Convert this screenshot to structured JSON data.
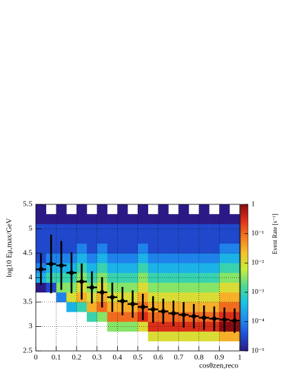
{
  "chart_data": {
    "type": "heatmap",
    "x_label": "cosθzen,reco",
    "y_label": "log10 Eμ,max/GeV",
    "z_label": "Event Rate [s⁻¹]",
    "xbins": [
      0,
      0.05,
      0.1,
      0.15,
      0.2,
      0.25,
      0.3,
      0.35,
      0.4,
      0.45,
      0.5,
      0.55,
      0.6,
      0.65,
      0.7,
      0.75,
      0.8,
      0.85,
      0.9,
      0.95,
      1
    ],
    "ybins": [
      2.5,
      2.7,
      2.9,
      3.1,
      3.3,
      3.5,
      3.7,
      3.9,
      4.1,
      4.3,
      4.5,
      4.7,
      4.9,
      5.1,
      5.3,
      5.5
    ],
    "z": [
      [
        null,
        null,
        null,
        null,
        null,
        null,
        null,
        null,
        null,
        null,
        null,
        null,
        null,
        null,
        null,
        null,
        null,
        null,
        null,
        null
      ],
      [
        null,
        null,
        null,
        null,
        null,
        null,
        null,
        null,
        null,
        null,
        null,
        0.01,
        0.01,
        0.01,
        0.01,
        0.01,
        0.01,
        0.01,
        0.03,
        0.03
      ],
      [
        null,
        null,
        null,
        null,
        null,
        null,
        null,
        0.003,
        0.003,
        0.003,
        0.01,
        0.3,
        0.3,
        0.3,
        0.3,
        0.3,
        0.3,
        0.3,
        1,
        1
      ],
      [
        null,
        null,
        null,
        null,
        null,
        0.001,
        0.003,
        0.1,
        0.1,
        0.1,
        0.3,
        0.1,
        0.1,
        0.1,
        0.1,
        0.1,
        0.1,
        0.1,
        0.3,
        0.3
      ],
      [
        null,
        null,
        null,
        0.0003,
        0.001,
        0.03,
        0.1,
        0.03,
        0.03,
        0.03,
        0.1,
        0.03,
        0.03,
        0.03,
        0.03,
        0.03,
        0.03,
        0.03,
        0.1,
        0.1
      ],
      [
        null,
        null,
        0.0001,
        0.01,
        0.03,
        0.01,
        0.03,
        0.01,
        0.01,
        0.01,
        0.03,
        0.01,
        0.01,
        0.01,
        0.01,
        0.01,
        0.01,
        0.01,
        0.03,
        0.03
      ],
      [
        1e-05,
        3e-05,
        0.003,
        0.003,
        0.01,
        0.003,
        0.01,
        0.003,
        0.003,
        0.003,
        0.01,
        0.003,
        0.003,
        0.003,
        0.003,
        0.003,
        0.003,
        0.003,
        0.01,
        0.01
      ],
      [
        0.0003,
        0.001,
        0.001,
        0.001,
        0.003,
        0.001,
        0.003,
        0.001,
        0.001,
        0.001,
        0.003,
        0.001,
        0.001,
        0.001,
        0.001,
        0.001,
        0.001,
        0.001,
        0.003,
        0.003
      ],
      [
        0.0001,
        0.0003,
        0.0003,
        0.0003,
        0.001,
        0.0003,
        0.001,
        0.0003,
        0.0003,
        0.0003,
        0.001,
        0.0003,
        0.0003,
        0.0003,
        0.0003,
        0.0003,
        0.0003,
        0.0003,
        0.001,
        0.001
      ],
      [
        3e-05,
        0.0001,
        0.0001,
        0.0001,
        0.0003,
        0.0001,
        0.0003,
        0.0001,
        0.0001,
        0.0001,
        0.0003,
        0.0001,
        0.0001,
        0.0001,
        0.0001,
        0.0001,
        0.0001,
        0.0001,
        0.0003,
        0.0003
      ],
      [
        3e-05,
        3e-05,
        3e-05,
        3e-05,
        0.0001,
        3e-05,
        0.0001,
        3e-05,
        3e-05,
        3e-05,
        0.0001,
        3e-05,
        3e-05,
        3e-05,
        3e-05,
        3e-05,
        3e-05,
        3e-05,
        0.0001,
        0.0001
      ],
      [
        3e-05,
        3e-05,
        3e-05,
        3e-05,
        3e-05,
        3e-05,
        3e-05,
        3e-05,
        3e-05,
        3e-05,
        3e-05,
        3e-05,
        3e-05,
        3e-05,
        3e-05,
        3e-05,
        3e-05,
        3e-05,
        3e-05,
        3e-05
      ],
      [
        3e-05,
        3e-05,
        3e-05,
        3e-05,
        3e-05,
        3e-05,
        3e-05,
        3e-05,
        3e-05,
        3e-05,
        3e-05,
        3e-05,
        3e-05,
        3e-05,
        3e-05,
        3e-05,
        3e-05,
        3e-05,
        3e-05,
        3e-05
      ],
      [
        1e-05,
        1e-05,
        1e-05,
        1e-05,
        1e-05,
        1e-05,
        1e-05,
        1e-05,
        1e-05,
        1e-05,
        1e-05,
        1e-05,
        1e-05,
        1e-05,
        1e-05,
        1e-05,
        1e-05,
        1e-05,
        1e-05,
        1e-05
      ],
      [
        1e-05,
        null,
        1e-05,
        null,
        1e-05,
        null,
        1e-05,
        null,
        1e-05,
        null,
        1e-05,
        null,
        1e-05,
        null,
        1e-05,
        null,
        1e-05,
        null,
        1e-05,
        null
      ]
    ],
    "zlim": [
      1e-05,
      1
    ],
    "zlog": true,
    "zticks": [
      {
        "value": 1e-05,
        "label": "10⁻⁵"
      },
      {
        "value": 0.0001,
        "label": "10⁻⁴"
      },
      {
        "value": 0.001,
        "label": "10⁻³"
      },
      {
        "value": 0.01,
        "label": "10⁻²"
      },
      {
        "value": 0.1,
        "label": "10⁻¹"
      },
      1
    ],
    "colormap": [
      "#2b1a86",
      "#1e4fd8",
      "#1f8ff0",
      "#19c4e4",
      "#4fdc8c",
      "#c6ee3c",
      "#f7c22c",
      "#f57a20",
      "#e0301a",
      "#8a0c10"
    ],
    "xlim": [
      0,
      1
    ],
    "xticks": [
      0,
      0.1,
      0.2,
      0.3,
      0.4,
      0.5,
      0.6,
      0.7,
      0.8,
      0.9,
      1
    ],
    "ylim": [
      2.5,
      5.5
    ],
    "yticks": [
      2.5,
      3,
      3.5,
      4,
      4.5,
      5,
      5.5
    ],
    "grid": true,
    "profile": {
      "color": "#000000",
      "x": [
        0.025,
        0.075,
        0.125,
        0.175,
        0.225,
        0.275,
        0.325,
        0.375,
        0.425,
        0.475,
        0.525,
        0.575,
        0.625,
        0.675,
        0.725,
        0.775,
        0.825,
        0.875,
        0.925,
        0.975
      ],
      "values": [
        4.17,
        4.28,
        4.25,
        4.1,
        3.92,
        3.8,
        3.7,
        3.6,
        3.52,
        3.46,
        3.4,
        3.35,
        3.31,
        3.27,
        3.24,
        3.21,
        3.18,
        3.16,
        3.14,
        3.12
      ],
      "errors": [
        0.32,
        0.6,
        0.5,
        0.42,
        0.37,
        0.33,
        0.31,
        0.3,
        0.29,
        0.28,
        0.27,
        0.27,
        0.26,
        0.26,
        0.26,
        0.25,
        0.25,
        0.25,
        0.25,
        0.25
      ]
    }
  }
}
